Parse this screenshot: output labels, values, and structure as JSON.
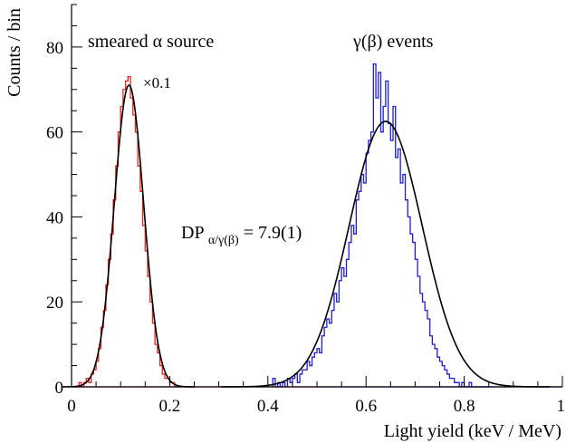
{
  "chart_data": {
    "type": "histogram",
    "xlabel": "Light yield (keV / MeV)",
    "ylabel": "Counts / bin",
    "xlim": [
      0,
      1
    ],
    "ylim": [
      0,
      90
    ],
    "xticks": [
      "0",
      "0.2",
      "0.4",
      "0.6",
      "0.8",
      "1"
    ],
    "yticks": [
      "0",
      "20",
      "40",
      "60",
      "80"
    ],
    "grid": false,
    "annotations": {
      "alpha_label": "smeared α source",
      "scale_label": "×0.1",
      "gamma_label": "γ(β) events",
      "dp_main": "DP",
      "dp_sub": "α/γ(β)",
      "dp_value": " = 7.9(1)"
    },
    "series": [
      {
        "key": "alpha",
        "color": "#e8231d",
        "step_x": [
          0.0,
          0.005,
          0.01,
          0.015,
          0.02,
          0.025,
          0.03,
          0.035,
          0.04,
          0.045,
          0.05,
          0.055,
          0.06,
          0.065,
          0.07,
          0.075,
          0.08,
          0.085,
          0.09,
          0.095,
          0.1,
          0.105,
          0.11,
          0.115,
          0.12,
          0.125,
          0.13,
          0.135,
          0.14,
          0.145,
          0.15,
          0.155,
          0.16,
          0.165,
          0.17,
          0.175,
          0.18,
          0.185,
          0.19,
          0.195,
          0.2,
          0.205,
          0.21,
          0.215,
          0.22,
          0.225,
          0.23
        ],
        "step_y": [
          0,
          0,
          0,
          1,
          0,
          1,
          2,
          1,
          3,
          4,
          6,
          9,
          14,
          18,
          24,
          30,
          36,
          44,
          52,
          60,
          66,
          70,
          72,
          73,
          68,
          64,
          60,
          52,
          46,
          38,
          32,
          26,
          20,
          15,
          10,
          8,
          5,
          3,
          2,
          2,
          1,
          1,
          0,
          0,
          0,
          0,
          0
        ],
        "fit": {
          "mu": 0.117,
          "sigma": 0.03,
          "amp": 71
        }
      },
      {
        "key": "gamma",
        "color": "#1e1ed2",
        "step_x": [
          0.41,
          0.415,
          0.42,
          0.425,
          0.43,
          0.435,
          0.44,
          0.445,
          0.45,
          0.455,
          0.46,
          0.465,
          0.47,
          0.475,
          0.48,
          0.485,
          0.49,
          0.495,
          0.5,
          0.505,
          0.51,
          0.515,
          0.52,
          0.525,
          0.53,
          0.535,
          0.54,
          0.545,
          0.55,
          0.555,
          0.56,
          0.565,
          0.57,
          0.575,
          0.58,
          0.585,
          0.59,
          0.595,
          0.6,
          0.605,
          0.61,
          0.615,
          0.62,
          0.625,
          0.63,
          0.635,
          0.64,
          0.645,
          0.65,
          0.655,
          0.66,
          0.665,
          0.67,
          0.675,
          0.68,
          0.685,
          0.69,
          0.695,
          0.7,
          0.705,
          0.71,
          0.715,
          0.72,
          0.725,
          0.73,
          0.735,
          0.74,
          0.745,
          0.75,
          0.755,
          0.76,
          0.765,
          0.77,
          0.775,
          0.78,
          0.785,
          0.79,
          0.795,
          0.8,
          0.805,
          0.81,
          0.815,
          0.82,
          0.825,
          0.83,
          0.835,
          0.84,
          0.845,
          0.85
        ],
        "step_y": [
          2,
          0,
          1,
          0,
          1,
          0,
          2,
          1,
          2,
          3,
          1,
          3,
          4,
          4,
          6,
          5,
          7,
          8,
          9,
          8,
          12,
          14,
          16,
          15,
          18,
          22,
          20,
          25,
          28,
          26,
          30,
          34,
          38,
          36,
          44,
          46,
          50,
          48,
          55,
          58,
          60,
          76,
          68,
          74,
          60,
          66,
          72,
          62,
          58,
          66,
          54,
          56,
          48,
          50,
          44,
          40,
          36,
          34,
          30,
          26,
          22,
          20,
          18,
          16,
          12,
          10,
          9,
          7,
          6,
          5,
          4,
          3,
          2,
          2,
          1,
          1,
          0,
          1,
          0,
          0,
          1,
          0,
          0,
          0,
          0,
          0,
          0,
          0,
          0
        ],
        "fit": {
          "mu": 0.64,
          "sigma": 0.0745,
          "amp": 62.5
        }
      }
    ]
  }
}
